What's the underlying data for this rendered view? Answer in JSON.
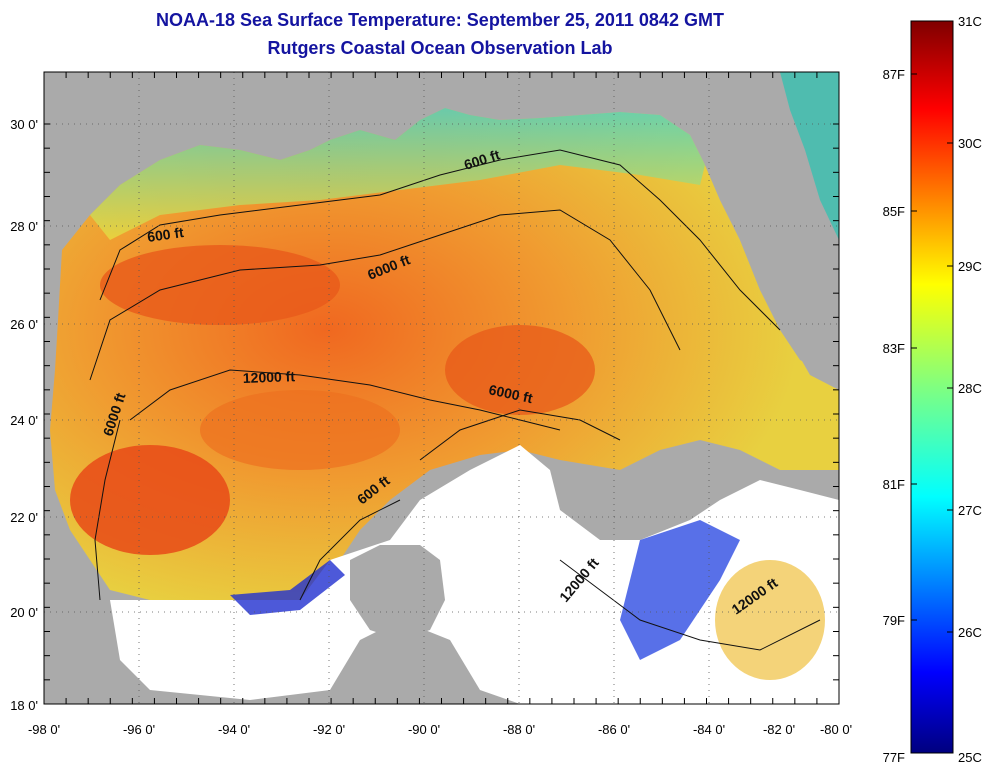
{
  "header": {
    "title": "NOAA-18 Sea Surface Temperature:  September 25, 2011 0842 GMT",
    "subtitle": "Rutgers Coastal Ocean Observation Lab"
  },
  "map": {
    "lon_ticks": [
      "-98 0'",
      "-96 0'",
      "-94 0'",
      "-92 0'",
      "-90 0'",
      "-88 0'",
      "-86 0'",
      "-84 0'",
      "-82 0'",
      "-80 0'"
    ],
    "lat_ticks": [
      "30 0'",
      "28 0'",
      "26 0'",
      "24 0'",
      "22 0'",
      "20 0'",
      "18 0'"
    ],
    "contour_labels": [
      "600 ft",
      "600 ft",
      "6000 ft",
      "6000 ft",
      "12000 ft",
      "6000 ft",
      "600 ft",
      "12000 ft",
      "12000 ft"
    ]
  },
  "colorbar": {
    "celsius": [
      "31C",
      "30C",
      "29C",
      "28C",
      "27C",
      "26C",
      "25C"
    ],
    "fahrenheit": [
      "87F",
      "85F",
      "83F",
      "81F",
      "79F",
      "77F"
    ]
  },
  "colors": {
    "title": "#1414a0",
    "land": "#aaaaaa",
    "no_data": "#ffffff"
  }
}
